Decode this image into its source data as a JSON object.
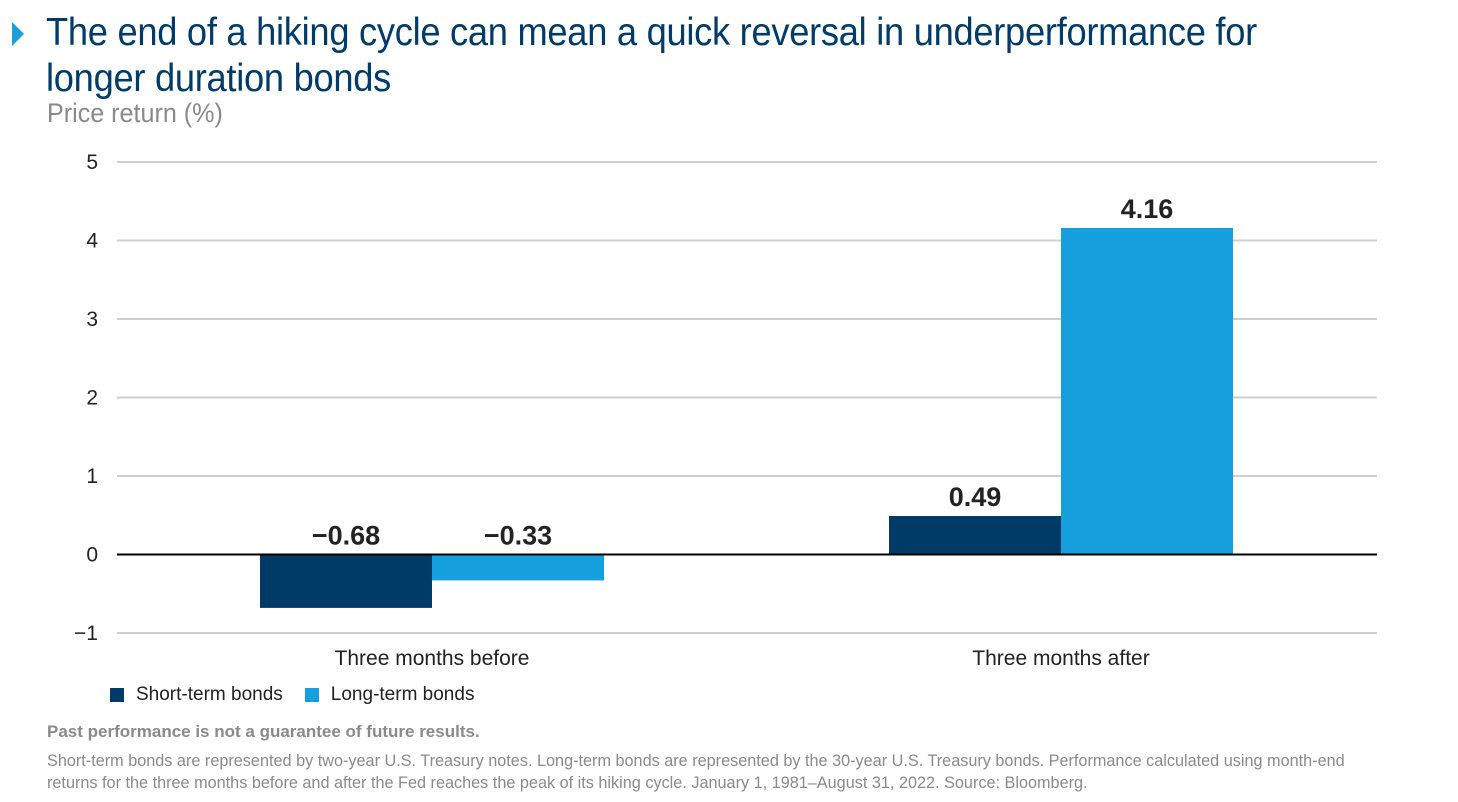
{
  "header": {
    "title": "The end of a hiking cycle can mean a quick reversal in underperformance for longer duration bonds",
    "subtitle": "Price return (%)"
  },
  "colors": {
    "short_term": "#003a66",
    "long_term": "#159fdc",
    "title": "#003a66",
    "marker": "#1a9fd9",
    "grid": "#cfcfcf"
  },
  "chart_data": {
    "type": "bar",
    "categories": [
      "Three months before",
      "Three months after"
    ],
    "series": [
      {
        "name": "Short-term bonds",
        "values": [
          -0.68,
          0.49
        ],
        "labels": [
          "−0.68",
          "0.49"
        ]
      },
      {
        "name": "Long-term bonds",
        "values": [
          -0.33,
          4.16
        ],
        "labels": [
          "−0.33",
          "4.16"
        ]
      }
    ],
    "ylabel": "Price return (%)",
    "ylim": [
      -1,
      5
    ],
    "yticks": [
      5,
      4,
      3,
      2,
      1,
      0,
      -1
    ],
    "ytick_labels": [
      "5",
      "4",
      "3",
      "2",
      "1",
      "0",
      "−1"
    ],
    "grid": true,
    "legend_position": "bottom-left"
  },
  "legend": {
    "items": [
      "Short-term bonds",
      "Long-term bonds"
    ]
  },
  "footnotes": {
    "disclaimer": "Past performance is not a guarantee of future results.",
    "methodology": "Short-term bonds are represented by two-year U.S. Treasury notes. Long-term bonds are represented by the 30-year U.S. Treasury bonds. Performance calculated using month-end returns for the three months before and after the Fed reaches the peak of its hiking cycle. January 1, 1981–August 31, 2022. Source: Bloomberg."
  }
}
